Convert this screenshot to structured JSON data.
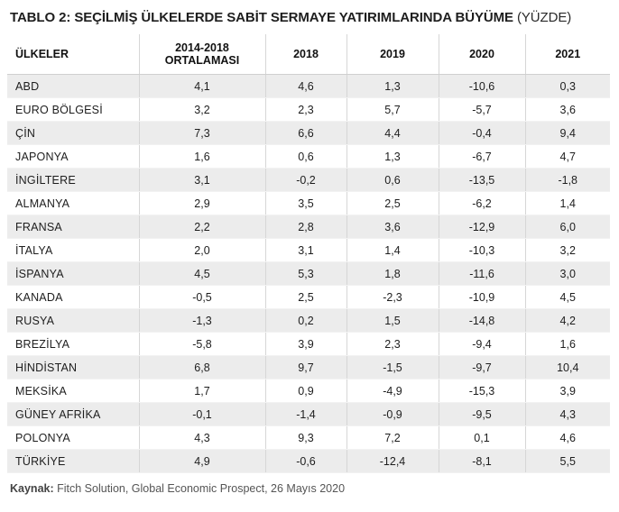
{
  "title": {
    "main": "TABLO 2: SEÇİLMİŞ ÜLKELERDE SABİT SERMAYE YATIRIMLARINDA BÜYÜME",
    "unit": "(YÜZDE)"
  },
  "table": {
    "headers": [
      "ÜLKELER",
      "2014-2018 ORTALAMASI",
      "2018",
      "2019",
      "2020",
      "2021"
    ],
    "rows": [
      [
        "ABD",
        "4,1",
        "4,6",
        "1,3",
        "-10,6",
        "0,3"
      ],
      [
        "EURO BÖLGESİ",
        "3,2",
        "2,3",
        "5,7",
        "-5,7",
        "3,6"
      ],
      [
        "ÇİN",
        "7,3",
        "6,6",
        "4,4",
        "-0,4",
        "9,4"
      ],
      [
        "JAPONYA",
        "1,6",
        "0,6",
        "1,3",
        "-6,7",
        "4,7"
      ],
      [
        "İNGİLTERE",
        "3,1",
        "-0,2",
        "0,6",
        "-13,5",
        "-1,8"
      ],
      [
        "ALMANYA",
        "2,9",
        "3,5",
        "2,5",
        "-6,2",
        "1,4"
      ],
      [
        "FRANSA",
        "2,2",
        "2,8",
        "3,6",
        "-12,9",
        "6,0"
      ],
      [
        "İTALYA",
        "2,0",
        "3,1",
        "1,4",
        "-10,3",
        "3,2"
      ],
      [
        "İSPANYA",
        "4,5",
        "5,3",
        "1,8",
        "-11,6",
        "3,0"
      ],
      [
        "KANADA",
        "-0,5",
        "2,5",
        "-2,3",
        "-10,9",
        "4,5"
      ],
      [
        "RUSYA",
        "-1,3",
        "0,2",
        "1,5",
        "-14,8",
        "4,2"
      ],
      [
        "BREZİLYA",
        "-5,8",
        "3,9",
        "2,3",
        "-9,4",
        "1,6"
      ],
      [
        "HİNDİSTAN",
        "6,8",
        "9,7",
        "-1,5",
        "-9,7",
        "10,4"
      ],
      [
        "MEKSİKA",
        "1,7",
        "0,9",
        "-4,9",
        "-15,3",
        "3,9"
      ],
      [
        "GÜNEY AFRİKA",
        "-0,1",
        "-1,4",
        "-0,9",
        "-9,5",
        "4,3"
      ],
      [
        "POLONYA",
        "4,3",
        "9,3",
        "7,2",
        "0,1",
        "4,6"
      ],
      [
        "TÜRKİYE",
        "4,9",
        "-0,6",
        "-12,4",
        "-8,1",
        "5,5"
      ]
    ]
  },
  "source": {
    "label": "Kaynak:",
    "text": "Fitch Solution, Global Economic Prospect, 26 Mayıs 2020"
  }
}
